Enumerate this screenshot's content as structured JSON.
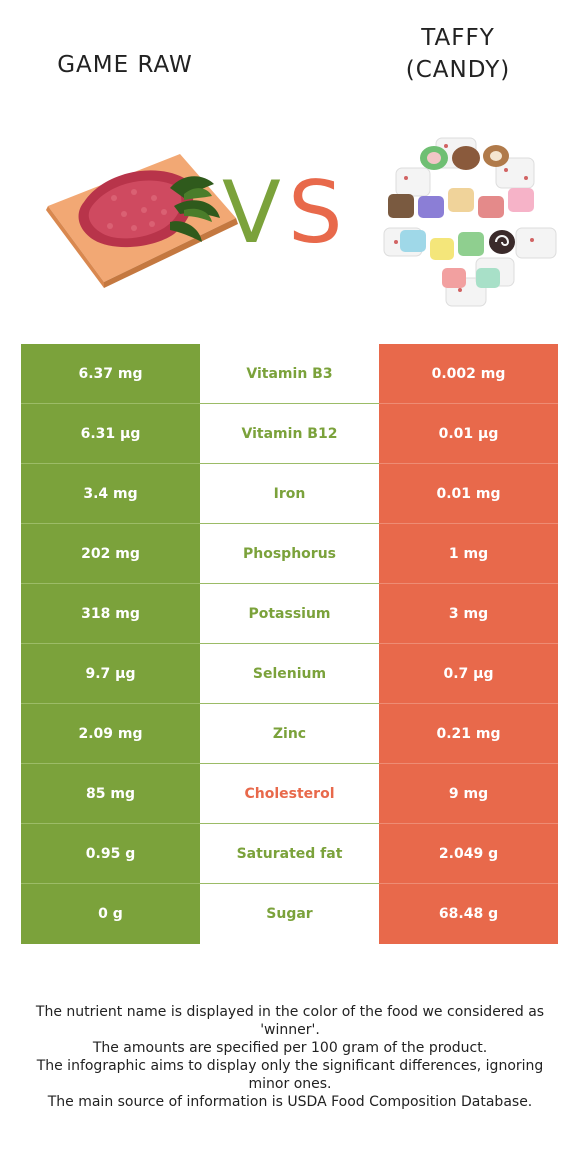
{
  "header": {
    "left_title": "GAME RAW",
    "right_title_line1": "TAFFY",
    "right_title_line2": "(CANDY)",
    "vs_v": "V",
    "vs_s": "S"
  },
  "colors": {
    "left_accent": "#7ba23b",
    "right_accent": "#e8694b"
  },
  "images": {
    "left": "raw-ground-meat-on-cutting-board",
    "right": "pile-of-wrapped-taffy-candies"
  },
  "rows": [
    {
      "left": "6.37 mg",
      "nutrient": "Vitamin B3",
      "right": "0.002 mg",
      "winner": "left"
    },
    {
      "left": "6.31 µg",
      "nutrient": "Vitamin B12",
      "right": "0.01 µg",
      "winner": "left"
    },
    {
      "left": "3.4 mg",
      "nutrient": "Iron",
      "right": "0.01 mg",
      "winner": "left"
    },
    {
      "left": "202 mg",
      "nutrient": "Phosphorus",
      "right": "1 mg",
      "winner": "left"
    },
    {
      "left": "318 mg",
      "nutrient": "Potassium",
      "right": "3 mg",
      "winner": "left"
    },
    {
      "left": "9.7 µg",
      "nutrient": "Selenium",
      "right": "0.7 µg",
      "winner": "left"
    },
    {
      "left": "2.09 mg",
      "nutrient": "Zinc",
      "right": "0.21 mg",
      "winner": "left"
    },
    {
      "left": "85 mg",
      "nutrient": "Cholesterol",
      "right": "9 mg",
      "winner": "right"
    },
    {
      "left": "0.95 g",
      "nutrient": "Saturated fat",
      "right": "2.049 g",
      "winner": "left"
    },
    {
      "left": "0 g",
      "nutrient": "Sugar",
      "right": "68.48 g",
      "winner": "left"
    }
  ],
  "footer": {
    "line1": "The nutrient name is displayed in the color of the food we considered as 'winner'.",
    "line2": "The amounts are specified per 100 gram of the product.",
    "line3": "The infographic aims to display only the significant differences, ignoring minor ones.",
    "line4": "The main source of information is USDA Food Composition Database."
  }
}
